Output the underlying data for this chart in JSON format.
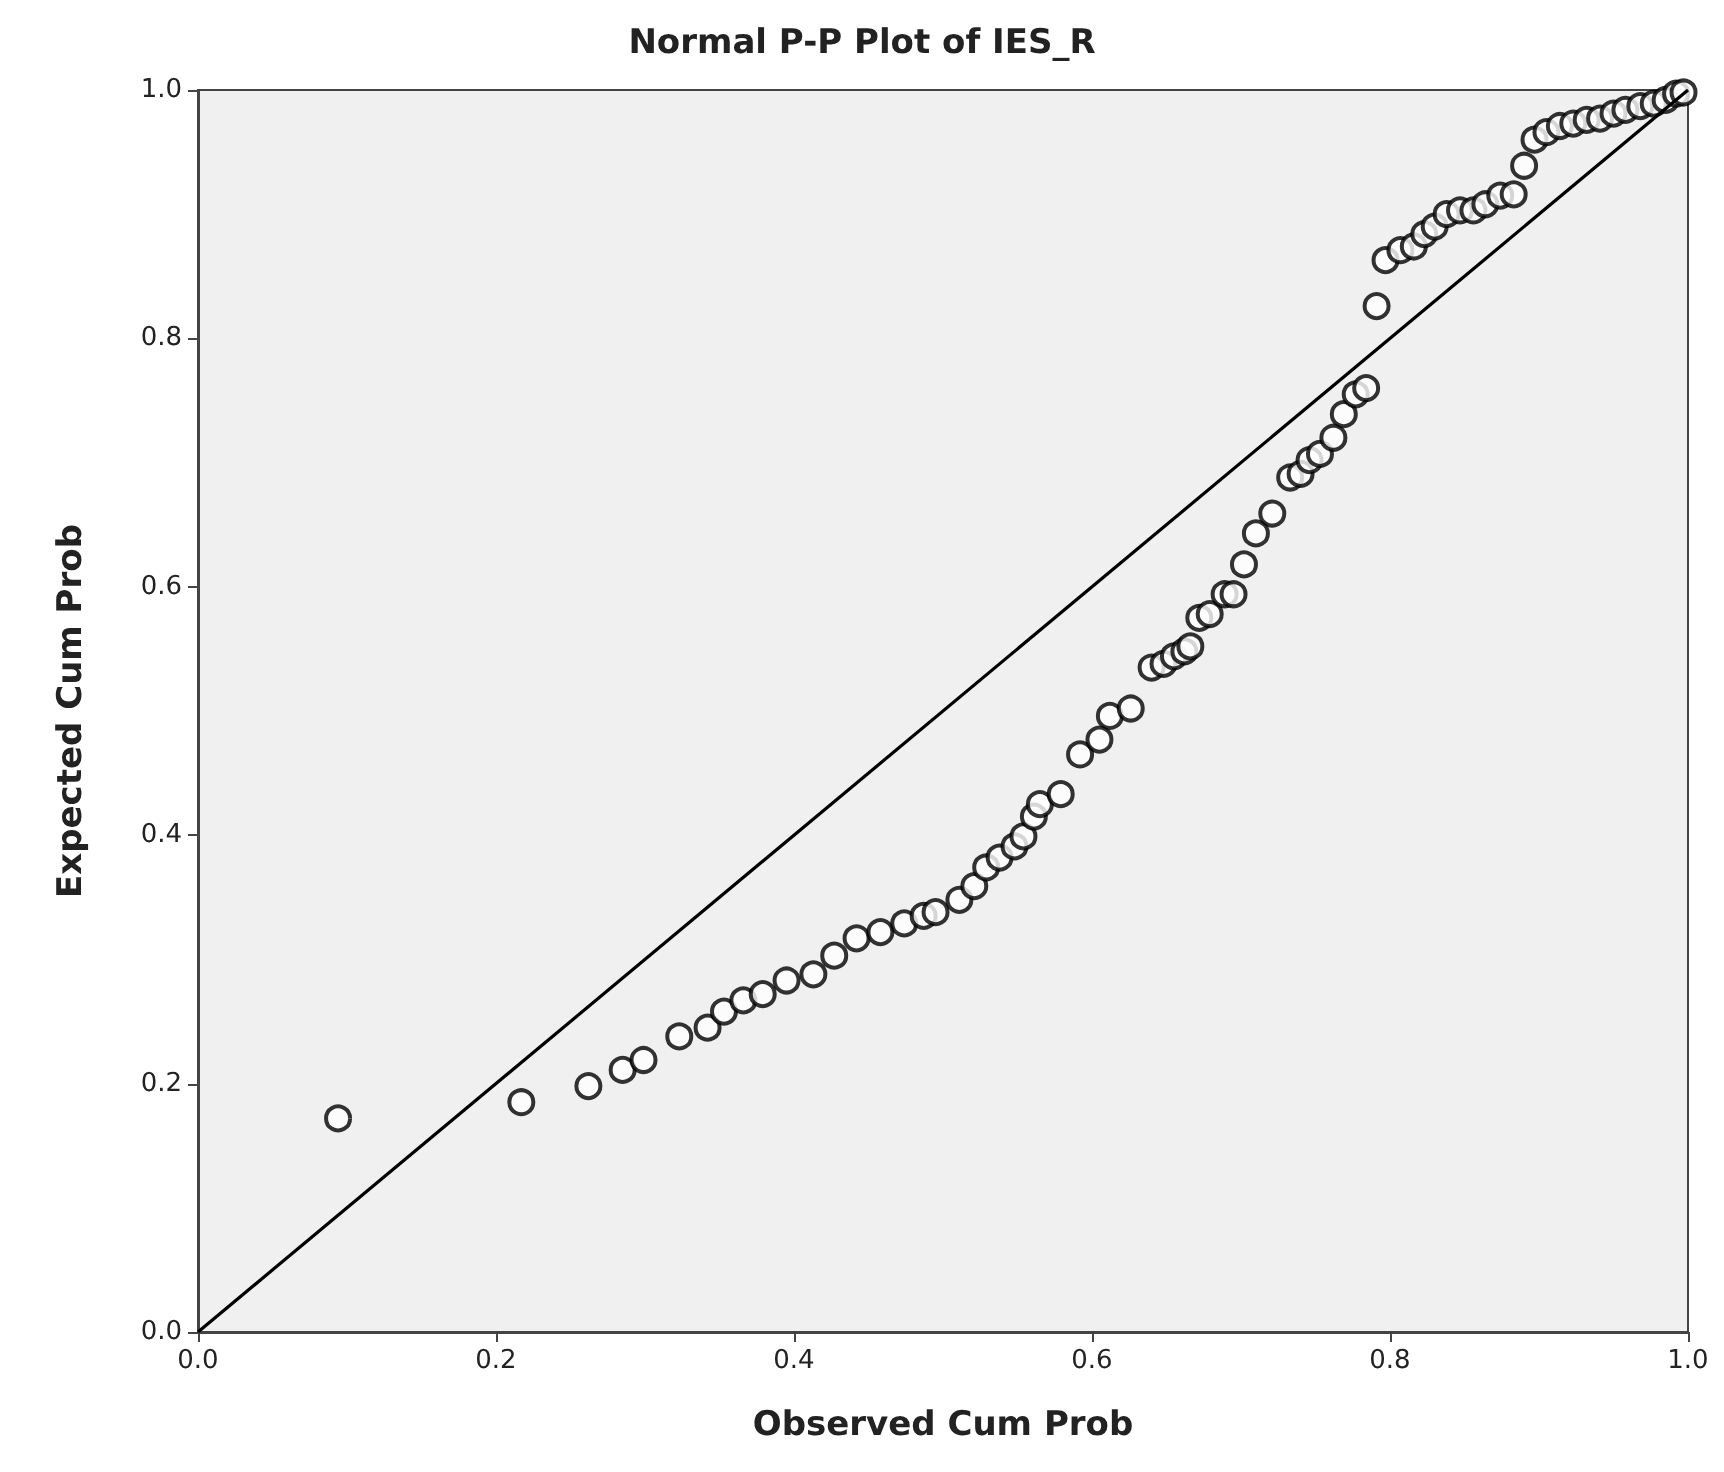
{
  "chart_data": {
    "type": "scatter",
    "title": "Normal P-P Plot of IES_R",
    "xlabel": "Observed Cum Prob",
    "ylabel": "Expected Cum Prob",
    "xlim": [
      0,
      1
    ],
    "ylim": [
      0,
      1
    ],
    "xticks": [
      {
        "value": 0,
        "label": "0.0"
      },
      {
        "value": 0.2,
        "label": "0.2"
      },
      {
        "value": 0.4,
        "label": "0.4"
      },
      {
        "value": 0.6,
        "label": "0.6"
      },
      {
        "value": 0.8,
        "label": "0.8"
      },
      {
        "value": 1,
        "label": "1.0"
      }
    ],
    "yticks": [
      {
        "value": 0,
        "label": "0.0"
      },
      {
        "value": 0.2,
        "label": "0.2"
      },
      {
        "value": 0.4,
        "label": "0.4"
      },
      {
        "value": 0.6,
        "label": "0.6"
      },
      {
        "value": 0.8,
        "label": "0.8"
      },
      {
        "value": 1,
        "label": "1.0"
      }
    ],
    "grid": false,
    "series": [
      {
        "color": "#000000",
        "marker": "circle",
        "x": [
          0.094,
          0.217,
          0.262,
          0.285,
          0.299,
          0.323,
          0.342,
          0.353,
          0.366,
          0.379,
          0.395,
          0.413,
          0.427,
          0.442,
          0.458,
          0.474,
          0.487,
          0.495,
          0.511,
          0.521,
          0.529,
          0.538,
          0.548,
          0.554,
          0.561,
          0.565,
          0.579,
          0.592,
          0.605,
          0.612,
          0.626,
          0.64,
          0.648,
          0.655,
          0.662,
          0.666,
          0.672,
          0.679,
          0.689,
          0.695,
          0.702,
          0.71,
          0.721,
          0.733,
          0.74,
          0.746,
          0.753,
          0.762,
          0.769,
          0.777,
          0.784,
          0.791,
          0.797,
          0.807,
          0.816,
          0.823,
          0.83,
          0.838,
          0.847,
          0.856,
          0.864,
          0.874,
          0.883,
          0.89,
          0.897,
          0.905,
          0.914,
          0.923,
          0.932,
          0.941,
          0.95,
          0.958,
          0.968,
          0.977,
          0.985,
          0.992,
          0.997
        ],
        "values": [
          0.172,
          0.185,
          0.198,
          0.211,
          0.219,
          0.238,
          0.245,
          0.258,
          0.267,
          0.272,
          0.283,
          0.288,
          0.303,
          0.317,
          0.322,
          0.329,
          0.335,
          0.338,
          0.348,
          0.359,
          0.374,
          0.382,
          0.391,
          0.399,
          0.415,
          0.425,
          0.433,
          0.465,
          0.477,
          0.496,
          0.502,
          0.535,
          0.538,
          0.544,
          0.548,
          0.552,
          0.575,
          0.578,
          0.594,
          0.594,
          0.618,
          0.643,
          0.659,
          0.688,
          0.691,
          0.702,
          0.707,
          0.72,
          0.739,
          0.755,
          0.76,
          0.826,
          0.863,
          0.871,
          0.874,
          0.884,
          0.89,
          0.9,
          0.903,
          0.903,
          0.908,
          0.915,
          0.916,
          0.939,
          0.96,
          0.966,
          0.971,
          0.973,
          0.976,
          0.977,
          0.981,
          0.984,
          0.987,
          0.989,
          0.992,
          0.997,
          0.998
        ]
      },
      {
        "type": "line",
        "color": "#000000",
        "marker": "none",
        "line_style": "solid",
        "x": [
          0,
          1
        ],
        "values": [
          0,
          1
        ]
      }
    ]
  }
}
